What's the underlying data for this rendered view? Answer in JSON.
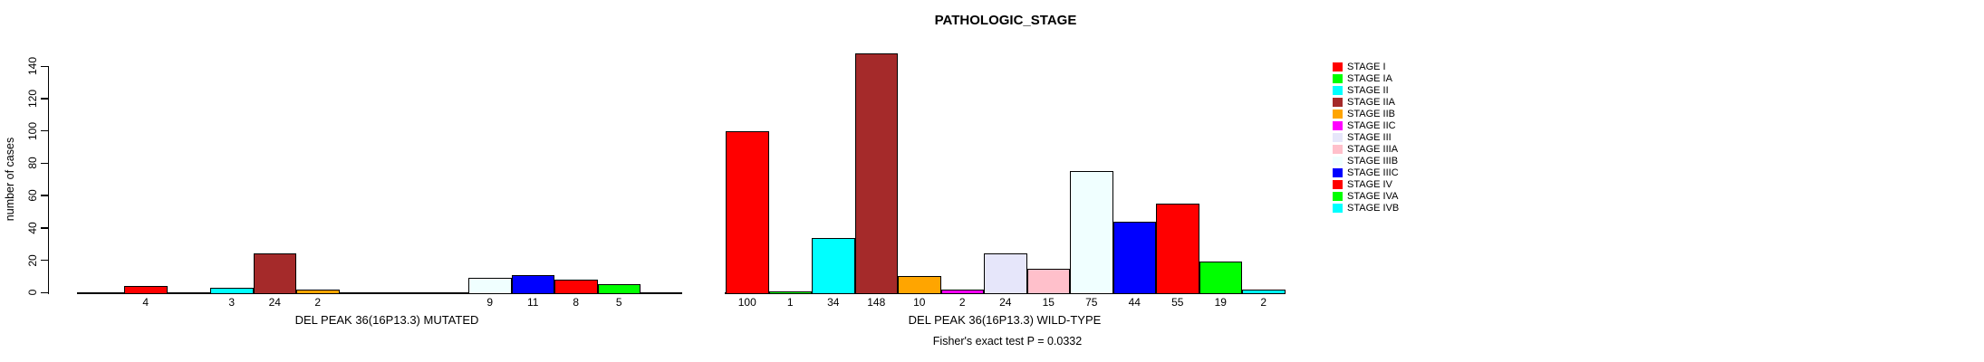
{
  "chart_data": {
    "type": "bar",
    "title": "PATHOLOGIC_STAGE",
    "ylabel": "number of cases",
    "ylim": [
      0,
      140
    ],
    "yticks": [
      0,
      20,
      40,
      60,
      80,
      100,
      120,
      140
    ],
    "grid": false,
    "legend_position": "right",
    "categories": [
      "STAGE I",
      "STAGE IA",
      "STAGE II",
      "STAGE IIA",
      "STAGE IIB",
      "STAGE IIC",
      "STAGE III",
      "STAGE IIIA",
      "STAGE IIIB",
      "STAGE IIIC",
      "STAGE IV",
      "STAGE IVA",
      "STAGE IVB"
    ],
    "colors": [
      "#FF0000",
      "#00FF00",
      "#00FFFF",
      "#A52A2A",
      "#FFA500",
      "#FF00FF",
      "#E6E6FA",
      "#FFC0CB",
      "#F0FFFF",
      "#0000FF",
      "#FF0000",
      "#00FF00",
      "#00FFFF"
    ],
    "groups": [
      {
        "label": "DEL PEAK 36(16P13.3) MUTATED",
        "values": [
          4,
          0,
          3,
          24,
          2,
          0,
          0,
          0,
          9,
          11,
          8,
          5,
          0
        ]
      },
      {
        "label": "DEL PEAK 36(16P13.3) WILD-TYPE",
        "values": [
          100,
          1,
          34,
          148,
          10,
          2,
          24,
          15,
          75,
          44,
          55,
          19,
          2
        ]
      }
    ],
    "footnote": "Fisher's exact test P = 0.0332"
  }
}
